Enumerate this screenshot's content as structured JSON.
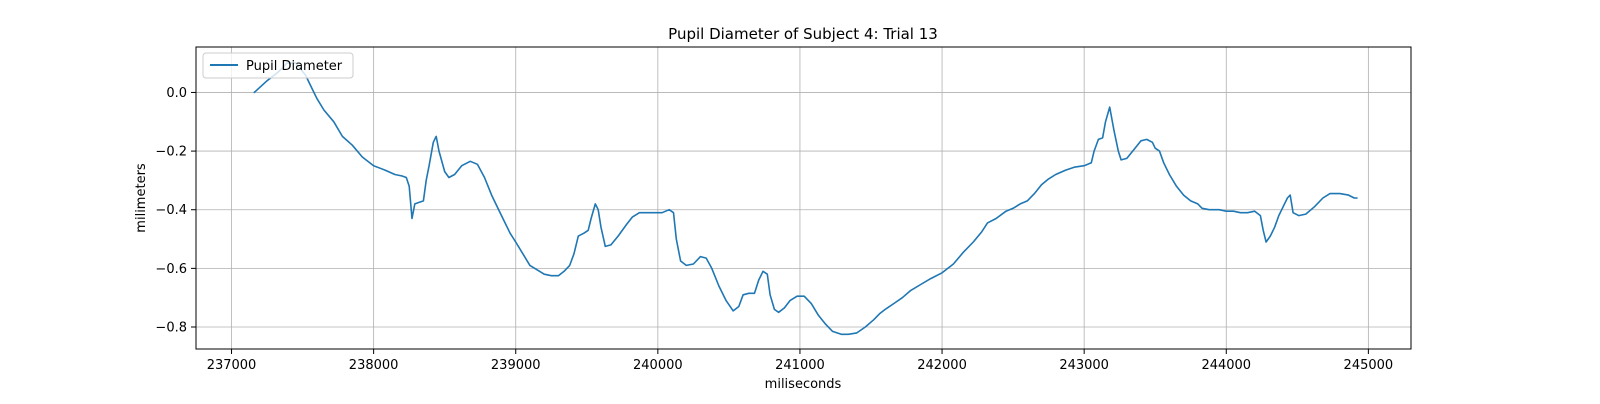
{
  "chart_data": {
    "type": "line",
    "title": "Pupil Diameter of Subject 4: Trial 13",
    "xlabel": "miliseconds",
    "ylabel": "milimeters",
    "xlim": [
      236750,
      245300
    ],
    "ylim": [
      -0.875,
      0.155
    ],
    "xticks": [
      237000,
      238000,
      239000,
      240000,
      241000,
      242000,
      243000,
      244000,
      245000
    ],
    "yticks": [
      0.0,
      -0.2,
      -0.4,
      -0.6,
      -0.8
    ],
    "ytick_labels": [
      "0.0",
      "−0.2",
      "−0.4",
      "−0.6",
      "−0.8"
    ],
    "grid": true,
    "legend_position": "top-left",
    "series": [
      {
        "name": "Pupil Diameter",
        "color": "#1f77b4",
        "points": [
          [
            237160,
            0.0
          ],
          [
            237250,
            0.04
          ],
          [
            237330,
            0.07
          ],
          [
            237390,
            0.1
          ],
          [
            237450,
            0.1
          ],
          [
            237520,
            0.06
          ],
          [
            237570,
            0.01
          ],
          [
            237600,
            -0.02
          ],
          [
            237650,
            -0.06
          ],
          [
            237720,
            -0.1
          ],
          [
            237780,
            -0.15
          ],
          [
            237850,
            -0.18
          ],
          [
            237920,
            -0.22
          ],
          [
            238000,
            -0.25
          ],
          [
            238080,
            -0.265
          ],
          [
            238150,
            -0.28
          ],
          [
            238200,
            -0.285
          ],
          [
            238230,
            -0.29
          ],
          [
            238250,
            -0.32
          ],
          [
            238270,
            -0.43
          ],
          [
            238290,
            -0.38
          ],
          [
            238320,
            -0.375
          ],
          [
            238350,
            -0.37
          ],
          [
            238370,
            -0.3
          ],
          [
            238390,
            -0.25
          ],
          [
            238420,
            -0.17
          ],
          [
            238440,
            -0.15
          ],
          [
            238460,
            -0.2
          ],
          [
            238500,
            -0.27
          ],
          [
            238530,
            -0.29
          ],
          [
            238570,
            -0.28
          ],
          [
            238620,
            -0.25
          ],
          [
            238680,
            -0.235
          ],
          [
            238730,
            -0.245
          ],
          [
            238780,
            -0.29
          ],
          [
            238830,
            -0.35
          ],
          [
            238900,
            -0.42
          ],
          [
            238960,
            -0.48
          ],
          [
            239000,
            -0.51
          ],
          [
            239050,
            -0.55
          ],
          [
            239100,
            -0.59
          ],
          [
            239150,
            -0.605
          ],
          [
            239200,
            -0.62
          ],
          [
            239250,
            -0.625
          ],
          [
            239300,
            -0.625
          ],
          [
            239340,
            -0.61
          ],
          [
            239380,
            -0.59
          ],
          [
            239410,
            -0.55
          ],
          [
            239440,
            -0.49
          ],
          [
            239480,
            -0.48
          ],
          [
            239510,
            -0.47
          ],
          [
            239530,
            -0.43
          ],
          [
            239560,
            -0.38
          ],
          [
            239580,
            -0.4
          ],
          [
            239600,
            -0.46
          ],
          [
            239630,
            -0.525
          ],
          [
            239670,
            -0.52
          ],
          [
            239720,
            -0.49
          ],
          [
            239780,
            -0.45
          ],
          [
            239820,
            -0.425
          ],
          [
            239870,
            -0.41
          ],
          [
            239950,
            -0.41
          ],
          [
            240030,
            -0.41
          ],
          [
            240080,
            -0.4
          ],
          [
            240110,
            -0.41
          ],
          [
            240130,
            -0.5
          ],
          [
            240160,
            -0.575
          ],
          [
            240200,
            -0.59
          ],
          [
            240250,
            -0.585
          ],
          [
            240300,
            -0.56
          ],
          [
            240340,
            -0.565
          ],
          [
            240380,
            -0.6
          ],
          [
            240430,
            -0.66
          ],
          [
            240480,
            -0.71
          ],
          [
            240530,
            -0.745
          ],
          [
            240570,
            -0.73
          ],
          [
            240600,
            -0.69
          ],
          [
            240640,
            -0.685
          ],
          [
            240680,
            -0.685
          ],
          [
            240710,
            -0.64
          ],
          [
            240740,
            -0.61
          ],
          [
            240770,
            -0.62
          ],
          [
            240790,
            -0.69
          ],
          [
            240820,
            -0.74
          ],
          [
            240850,
            -0.75
          ],
          [
            240890,
            -0.735
          ],
          [
            240930,
            -0.71
          ],
          [
            240980,
            -0.695
          ],
          [
            241030,
            -0.695
          ],
          [
            241080,
            -0.72
          ],
          [
            241130,
            -0.76
          ],
          [
            241180,
            -0.79
          ],
          [
            241230,
            -0.815
          ],
          [
            241290,
            -0.825
          ],
          [
            241340,
            -0.825
          ],
          [
            241400,
            -0.82
          ],
          [
            241460,
            -0.8
          ],
          [
            241520,
            -0.775
          ],
          [
            241560,
            -0.755
          ],
          [
            241600,
            -0.74
          ],
          [
            241660,
            -0.72
          ],
          [
            241720,
            -0.7
          ],
          [
            241780,
            -0.675
          ],
          [
            241850,
            -0.655
          ],
          [
            241920,
            -0.635
          ],
          [
            242000,
            -0.615
          ],
          [
            242080,
            -0.585
          ],
          [
            242150,
            -0.545
          ],
          [
            242220,
            -0.51
          ],
          [
            242280,
            -0.475
          ],
          [
            242320,
            -0.445
          ],
          [
            242380,
            -0.43
          ],
          [
            242450,
            -0.405
          ],
          [
            242500,
            -0.395
          ],
          [
            242550,
            -0.38
          ],
          [
            242600,
            -0.37
          ],
          [
            242650,
            -0.345
          ],
          [
            242700,
            -0.315
          ],
          [
            242750,
            -0.295
          ],
          [
            242800,
            -0.28
          ],
          [
            242870,
            -0.265
          ],
          [
            242930,
            -0.255
          ],
          [
            243000,
            -0.25
          ],
          [
            243050,
            -0.24
          ],
          [
            243070,
            -0.2
          ],
          [
            243100,
            -0.16
          ],
          [
            243130,
            -0.155
          ],
          [
            243150,
            -0.1
          ],
          [
            243180,
            -0.05
          ],
          [
            243210,
            -0.13
          ],
          [
            243240,
            -0.2
          ],
          [
            243260,
            -0.23
          ],
          [
            243300,
            -0.225
          ],
          [
            243350,
            -0.195
          ],
          [
            243400,
            -0.165
          ],
          [
            243440,
            -0.16
          ],
          [
            243480,
            -0.17
          ],
          [
            243500,
            -0.19
          ],
          [
            243530,
            -0.2
          ],
          [
            243560,
            -0.24
          ],
          [
            243600,
            -0.28
          ],
          [
            243650,
            -0.32
          ],
          [
            243700,
            -0.35
          ],
          [
            243750,
            -0.37
          ],
          [
            243800,
            -0.38
          ],
          [
            243830,
            -0.395
          ],
          [
            243880,
            -0.4
          ],
          [
            243950,
            -0.4
          ],
          [
            244000,
            -0.405
          ],
          [
            244050,
            -0.405
          ],
          [
            244100,
            -0.41
          ],
          [
            244150,
            -0.41
          ],
          [
            244200,
            -0.405
          ],
          [
            244240,
            -0.42
          ],
          [
            244260,
            -0.47
          ],
          [
            244280,
            -0.51
          ],
          [
            244310,
            -0.49
          ],
          [
            244340,
            -0.46
          ],
          [
            244370,
            -0.42
          ],
          [
            244400,
            -0.39
          ],
          [
            244430,
            -0.36
          ],
          [
            244450,
            -0.35
          ],
          [
            244470,
            -0.41
          ],
          [
            244510,
            -0.42
          ],
          [
            244560,
            -0.415
          ],
          [
            244620,
            -0.39
          ],
          [
            244680,
            -0.36
          ],
          [
            244730,
            -0.345
          ],
          [
            244800,
            -0.345
          ],
          [
            244860,
            -0.35
          ],
          [
            244900,
            -0.36
          ],
          [
            244920,
            -0.36
          ]
        ]
      }
    ]
  }
}
